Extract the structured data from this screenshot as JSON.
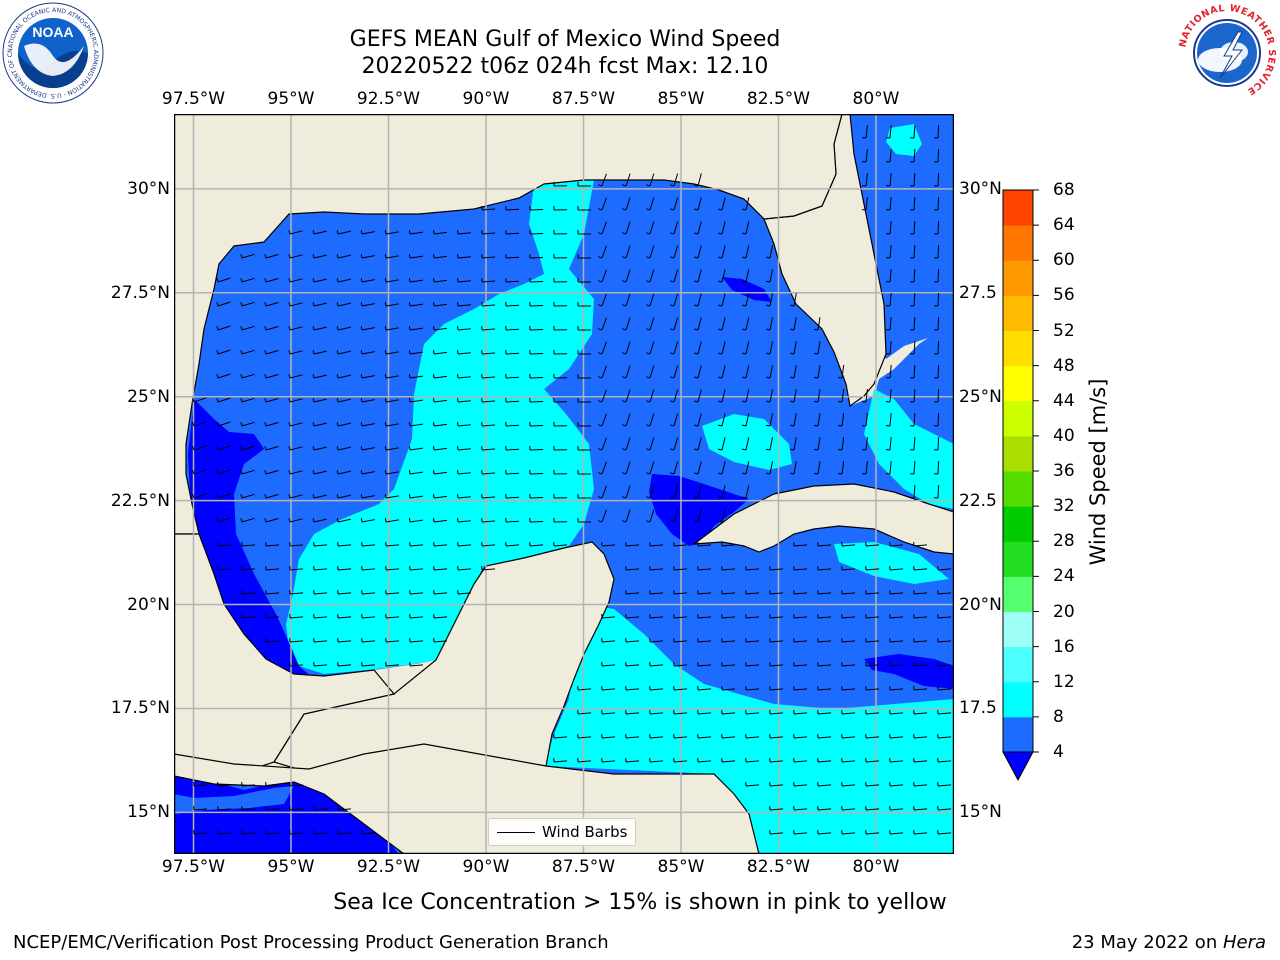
{
  "title": {
    "line1": "GEFS MEAN Gulf of Mexico Wind Speed",
    "line2": "20220522 t06z 024h fcst   Max: 12.10"
  },
  "logos": {
    "noaa": {
      "text": "NOAA",
      "ring_text": "NATIONAL OCEANIC AND ATMOSPHERIC ADMINISTRATION · U.S. DEPARTMENT OF COMMERCE"
    },
    "nws": {
      "ring_text": "NATIONAL WEATHER SERVICE"
    }
  },
  "axes": {
    "lon_labels": [
      "97.5°W",
      "95°W",
      "92.5°W",
      "90°W",
      "87.5°W",
      "85°W",
      "82.5°W",
      "80°W"
    ],
    "lon_values": [
      -97.5,
      -95,
      -92.5,
      -90,
      -87.5,
      -85,
      -82.5,
      -80
    ],
    "lat_labels": [
      "30°N",
      "27.5°N",
      "25°N",
      "22.5°N",
      "20°N",
      "17.5°N",
      "15°N"
    ],
    "lat_values": [
      30,
      27.5,
      25,
      22.5,
      20,
      17.5,
      15
    ],
    "lat_labels_right": [
      "30°N",
      "27.5",
      "25°N",
      "22.5",
      "20°N",
      "17.5",
      "15°N"
    ],
    "lon_range": [
      -98,
      -78
    ],
    "lat_range": [
      14,
      31.8
    ],
    "grid": true
  },
  "colorbar": {
    "title": "Wind Speed [m/s]",
    "levels": [
      4,
      8,
      12,
      16,
      20,
      24,
      28,
      32,
      36,
      40,
      44,
      48,
      52,
      56,
      60,
      64,
      68
    ],
    "labels": [
      "4",
      "8",
      "12",
      "16",
      "20",
      "24",
      "28",
      "32",
      "36",
      "40",
      "44",
      "48",
      "52",
      "56",
      "60",
      "64",
      "68"
    ],
    "colors": [
      "#1e6bff",
      "#00ffff",
      "#4dffff",
      "#9dfff5",
      "#55ff70",
      "#22dd22",
      "#00cc00",
      "#55dd00",
      "#aadd00",
      "#ccff00",
      "#ffff00",
      "#ffdd00",
      "#ffbb00",
      "#ff9900",
      "#ff7700",
      "#ff4400",
      "#ff1100"
    ],
    "under_color": "#0000ff",
    "extend": "min"
  },
  "map_colors": {
    "land": "#efecdc",
    "water_base": "#1e6bff",
    "band_4_8": "#1e6bff",
    "band_8_12": "#00ffff",
    "band_under_4": "#0000ff",
    "grid": "#b3b3b3",
    "coast": "#000000"
  },
  "legend": {
    "label": "Wind Barbs"
  },
  "caption": "Sea Ice Concentration > 15% is shown in pink to yellow",
  "footer": {
    "left": "NCEP/EMC/Verification Post Processing Product Generation Branch",
    "right_prefix": "23 May 2022 on ",
    "right_host": "Hera"
  }
}
